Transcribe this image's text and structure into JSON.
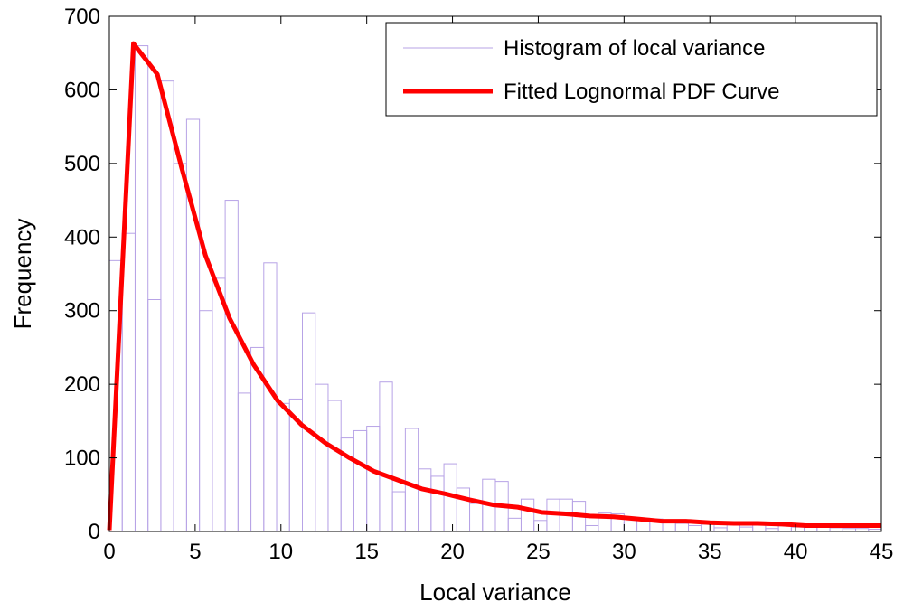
{
  "chart_data": {
    "type": "bar",
    "xlabel": "Local variance",
    "ylabel": "Frequency",
    "xlim": [
      0,
      45
    ],
    "ylim": [
      0,
      700
    ],
    "xticks": [
      0,
      5,
      10,
      15,
      20,
      25,
      30,
      35,
      40,
      45
    ],
    "yticks": [
      0,
      100,
      200,
      300,
      400,
      500,
      600,
      700
    ],
    "grid": false,
    "legend_position": "top-right",
    "colors": {
      "histogram": "#b7a3e6",
      "curve": "#ff0000"
    },
    "series": [
      {
        "name": "Histogram of local variance",
        "type": "histogram",
        "bin_width": 0.75,
        "bin_starts": [
          0,
          0.75,
          1.5,
          2.25,
          3,
          3.75,
          4.5,
          5.25,
          6,
          6.75,
          7.5,
          8.25,
          9,
          9.75,
          10.5,
          11.25,
          12,
          12.75,
          13.5,
          14.25,
          15,
          15.75,
          16.5,
          17.25,
          18,
          18.75,
          19.5,
          20.25,
          21,
          21.75,
          22.5,
          23.25,
          24,
          24.75,
          25.5,
          26.25,
          27,
          27.75,
          28.5,
          29.25,
          30,
          30.75,
          31.5,
          32.25,
          33,
          33.75,
          34.5,
          35.25,
          36,
          36.75,
          37.5,
          38.25,
          39,
          39.75,
          40.5,
          41.25,
          42,
          42.75,
          43.5,
          44.25
        ],
        "values": [
          368,
          405,
          660,
          315,
          612,
          500,
          560,
          300,
          344,
          450,
          188,
          250,
          365,
          174,
          180,
          297,
          200,
          178,
          127,
          137,
          143,
          203,
          54,
          140,
          85,
          75,
          92,
          59,
          38,
          71,
          68,
          18,
          44,
          15,
          44,
          44,
          41,
          8,
          25,
          24,
          13,
          18,
          17,
          13,
          11,
          8,
          10,
          5,
          11,
          6,
          9,
          4,
          8,
          6,
          8,
          6,
          5,
          4,
          4,
          3
        ]
      },
      {
        "name": "Fitted Lognormal PDF Curve",
        "type": "line",
        "x": [
          0,
          1.4,
          2.8,
          4.2,
          5.6,
          7,
          8.4,
          9.8,
          11.2,
          12.6,
          14,
          15.4,
          16.8,
          18.2,
          19.6,
          21,
          22.4,
          23.8,
          25.2,
          26.6,
          28,
          29.4,
          30.8,
          32.2,
          33.6,
          35,
          36.4,
          37.8,
          39.2,
          40.6,
          42,
          43.4,
          45
        ],
        "y": [
          2,
          663,
          621,
          495,
          375,
          290,
          227,
          178,
          145,
          120,
          100,
          82,
          70,
          58,
          51,
          43,
          36,
          33,
          26,
          24,
          21,
          20,
          17,
          14,
          14,
          12,
          11,
          11,
          10,
          8,
          8,
          8,
          8
        ]
      }
    ]
  }
}
